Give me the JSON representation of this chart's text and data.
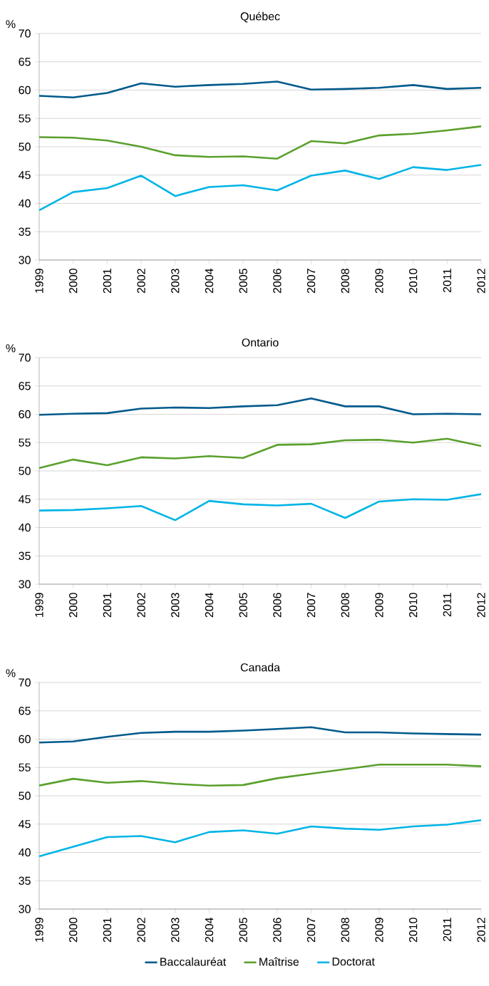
{
  "chart_data": [
    {
      "type": "line",
      "title": "Québec",
      "ylabel": "%",
      "categories": [
        "1999",
        "2000",
        "2001",
        "2002",
        "2003",
        "2004",
        "2005",
        "2006",
        "2007",
        "2008",
        "2009",
        "2010",
        "2011",
        "2012"
      ],
      "ylim": [
        30,
        70
      ],
      "yticks": [
        30,
        35,
        40,
        45,
        50,
        55,
        60,
        65,
        70
      ],
      "grid": "y",
      "line_style": "solid",
      "series": [
        {
          "color": "#005a8c",
          "values": [
            59.0,
            58.7,
            59.5,
            61.2,
            60.6,
            60.9,
            61.1,
            61.5,
            60.1,
            60.2,
            60.4,
            60.9,
            60.2,
            60.4
          ]
        },
        {
          "color": "#5aa02c",
          "values": [
            51.7,
            51.6,
            51.1,
            50.0,
            48.5,
            48.2,
            48.3,
            47.9,
            51.0,
            50.6,
            52.0,
            52.3,
            52.9,
            53.6
          ]
        },
        {
          "color": "#00b4e6",
          "values": [
            38.8,
            42.0,
            42.7,
            44.9,
            41.3,
            42.9,
            43.2,
            42.3,
            44.9,
            45.8,
            44.3,
            46.4,
            45.9,
            46.8
          ]
        }
      ]
    },
    {
      "type": "line",
      "title": "Ontario",
      "ylabel": "%",
      "categories": [
        "1999",
        "2000",
        "2001",
        "2002",
        "2003",
        "2004",
        "2005",
        "2006",
        "2007",
        "2008",
        "2009",
        "2010",
        "2011",
        "2012"
      ],
      "ylim": [
        30,
        70
      ],
      "yticks": [
        30,
        35,
        40,
        45,
        50,
        55,
        60,
        65,
        70
      ],
      "grid": "y",
      "line_style": "solid",
      "series": [
        {
          "color": "#005a8c",
          "values": [
            59.9,
            60.1,
            60.2,
            61.0,
            61.2,
            61.1,
            61.4,
            61.6,
            62.8,
            61.4,
            61.4,
            60.0,
            60.1,
            60.0
          ]
        },
        {
          "color": "#5aa02c",
          "values": [
            50.5,
            52.0,
            51.0,
            52.4,
            52.2,
            52.6,
            52.3,
            54.6,
            54.7,
            55.4,
            55.5,
            55.0,
            55.7,
            54.4
          ]
        },
        {
          "color": "#00b4e6",
          "values": [
            43.0,
            43.1,
            43.4,
            43.8,
            41.3,
            44.7,
            44.1,
            43.9,
            44.2,
            41.7,
            44.6,
            45.0,
            44.9,
            45.9
          ]
        }
      ]
    },
    {
      "type": "line",
      "title": "Canada",
      "ylabel": "%",
      "categories": [
        "1999",
        "2000",
        "2001",
        "2002",
        "2003",
        "2004",
        "2005",
        "2006",
        "2007",
        "2008",
        "2009",
        "2010",
        "2011",
        "2012"
      ],
      "ylim": [
        30,
        70
      ],
      "yticks": [
        30,
        35,
        40,
        45,
        50,
        55,
        60,
        65,
        70
      ],
      "grid": "y",
      "line_style": "solid",
      "legend": "bottom",
      "series": [
        {
          "name": "Baccalauréat",
          "color": "#005a8c",
          "values": [
            59.4,
            59.6,
            60.4,
            61.1,
            61.3,
            61.3,
            61.5,
            61.8,
            62.1,
            61.2,
            61.2,
            61.0,
            60.9,
            60.8
          ]
        },
        {
          "name": "Maîtrise",
          "color": "#5aa02c",
          "values": [
            51.8,
            53.0,
            52.3,
            52.6,
            52.1,
            51.8,
            51.9,
            53.1,
            53.9,
            54.7,
            55.5,
            55.5,
            55.5,
            55.2
          ]
        },
        {
          "name": "Doctorat",
          "color": "#00b4e6",
          "values": [
            39.3,
            41.0,
            42.7,
            42.9,
            41.8,
            43.6,
            43.9,
            43.3,
            44.6,
            44.2,
            44.0,
            44.6,
            44.9,
            45.7
          ]
        }
      ]
    }
  ]
}
